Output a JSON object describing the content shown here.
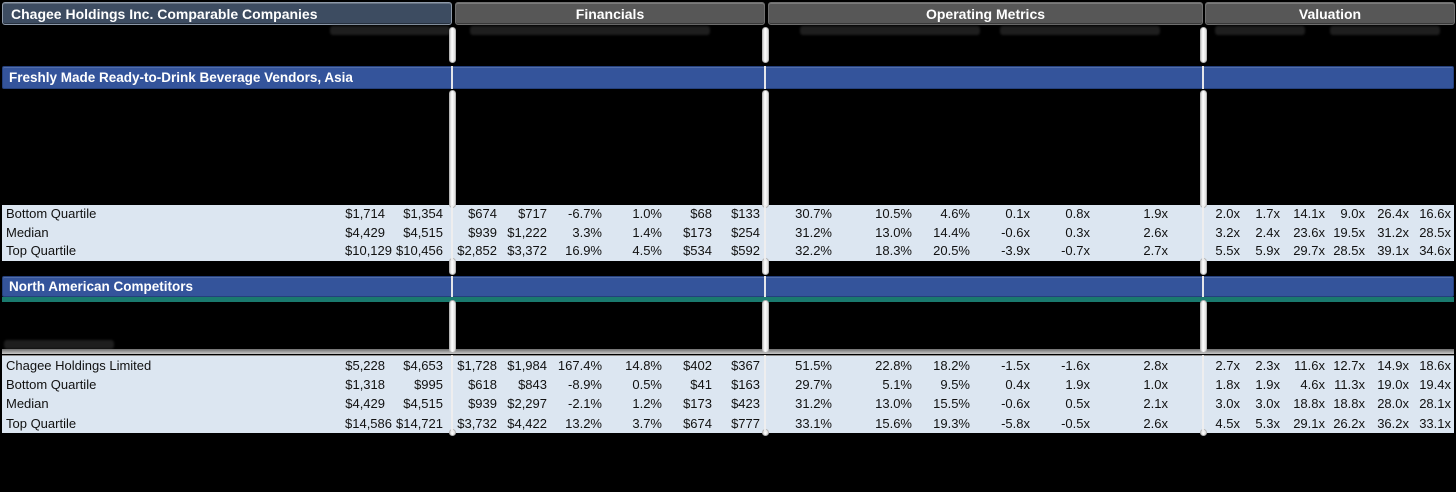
{
  "title": "Chagee Holdings Inc. Comparable Companies",
  "section_headers": [
    "Financials",
    "Operating Metrics",
    "Valuation"
  ],
  "groups": [
    {
      "band": "Freshly Made Ready-to-Drink Beverage Vendors, Asia",
      "rows": [
        {
          "label": "Bottom Quartile",
          "values": [
            "$1,714",
            "$1,354",
            "$674",
            "$717",
            "-6.7%",
            "1.0%",
            "$68",
            "$133",
            "30.7%",
            "10.5%",
            "4.6%",
            "0.1x",
            "0.8x",
            "1.9x",
            "2.0x",
            "1.7x",
            "14.1x",
            "9.0x",
            "26.4x",
            "16.6x"
          ]
        },
        {
          "label": "Median",
          "values": [
            "$4,429",
            "$4,515",
            "$939",
            "$1,222",
            "3.3%",
            "1.4%",
            "$173",
            "$254",
            "31.2%",
            "13.0%",
            "14.4%",
            "-0.6x",
            "0.3x",
            "2.6x",
            "3.2x",
            "2.4x",
            "23.6x",
            "19.5x",
            "31.2x",
            "28.5x"
          ]
        },
        {
          "label": "Top Quartile",
          "values": [
            "$10,129",
            "$10,456",
            "$2,852",
            "$3,372",
            "16.9%",
            "4.5%",
            "$534",
            "$592",
            "32.2%",
            "18.3%",
            "20.5%",
            "-3.9x",
            "-0.7x",
            "2.7x",
            "5.5x",
            "5.9x",
            "29.7x",
            "28.5x",
            "39.1x",
            "34.6x"
          ]
        }
      ]
    },
    {
      "band": "North American Competitors",
      "rows": [
        {
          "label": "Chagee Holdings Limited",
          "values": [
            "$5,228",
            "$4,653",
            "$1,728",
            "$1,984",
            "167.4%",
            "14.8%",
            "$402",
            "$367",
            "51.5%",
            "22.8%",
            "18.2%",
            "-1.5x",
            "-1.6x",
            "2.8x",
            "2.7x",
            "2.3x",
            "11.6x",
            "12.7x",
            "14.9x",
            "18.6x"
          ]
        },
        {
          "label": "Bottom Quartile",
          "values": [
            "$1,318",
            "$995",
            "$618",
            "$843",
            "-8.9%",
            "0.5%",
            "$41",
            "$163",
            "29.7%",
            "5.1%",
            "9.5%",
            "0.4x",
            "1.9x",
            "1.0x",
            "1.8x",
            "1.9x",
            "4.6x",
            "11.3x",
            "19.0x",
            "19.4x"
          ]
        },
        {
          "label": "Median",
          "values": [
            "$4,429",
            "$4,515",
            "$939",
            "$2,297",
            "-2.1%",
            "1.2%",
            "$173",
            "$423",
            "31.2%",
            "13.0%",
            "15.5%",
            "-0.6x",
            "0.5x",
            "2.1x",
            "3.0x",
            "3.0x",
            "18.8x",
            "18.8x",
            "28.0x",
            "28.1x"
          ]
        },
        {
          "label": "Top Quartile",
          "values": [
            "$14,586",
            "$14,721",
            "$3,732",
            "$4,422",
            "13.2%",
            "3.7%",
            "$674",
            "$777",
            "33.1%",
            "15.6%",
            "19.3%",
            "-5.8x",
            "-0.5x",
            "2.6x",
            "4.5x",
            "5.3x",
            "29.1x",
            "26.2x",
            "36.2x",
            "33.1x"
          ]
        }
      ]
    }
  ],
  "colors": {
    "title_band_bg": "#3D4C61",
    "section_band_bg": "#575757",
    "group_band_bg": "#34549B",
    "row_bg": "#DCE6F1",
    "teal_strip": "#1A7A6E",
    "band_text": "#FFFFFF",
    "cell_text": "#111111"
  }
}
